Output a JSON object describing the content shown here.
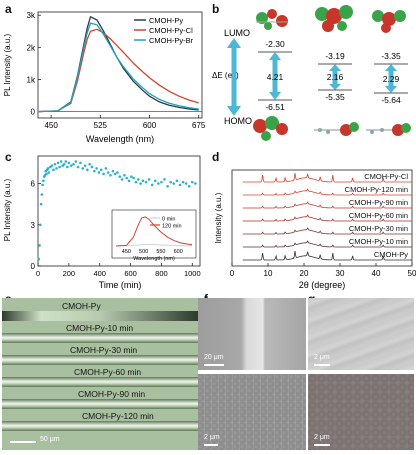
{
  "panels": {
    "a": "a",
    "b": "b",
    "c": "c",
    "d": "d",
    "e": "e",
    "f": "f",
    "g": "g"
  },
  "chart_data": [
    {
      "panel": "a",
      "type": "line",
      "ylabel": "PL Intensity (a.u.)",
      "xlabel": "Wavelength (nm)",
      "xlim": [
        430,
        680
      ],
      "ylim": [
        -200,
        3100
      ],
      "xticks": [
        450,
        525,
        600,
        675
      ],
      "yticks": [
        0,
        1000,
        2000,
        3000
      ],
      "ytick_labels": [
        "0",
        "1k",
        "2k",
        "3k"
      ],
      "legend_position": "top-right",
      "series": [
        {
          "name": "CMOH-Py",
          "color": "#2b3a4a",
          "x": [
            430,
            460,
            480,
            490,
            500,
            505,
            510,
            520,
            530,
            540,
            550,
            560,
            575,
            590,
            600,
            615,
            630,
            645,
            660,
            675
          ],
          "y": [
            0,
            20,
            300,
            1100,
            2100,
            2600,
            2950,
            2850,
            2500,
            2100,
            1700,
            1350,
            950,
            650,
            480,
            300,
            200,
            130,
            80,
            50
          ]
        },
        {
          "name": "CMOH-Py-Cl",
          "color": "#d9412b",
          "x": [
            430,
            460,
            480,
            490,
            500,
            505,
            510,
            520,
            530,
            540,
            550,
            560,
            575,
            590,
            600,
            615,
            630,
            645,
            660,
            675
          ],
          "y": [
            0,
            20,
            250,
            950,
            1850,
            2250,
            2500,
            2560,
            2450,
            2270,
            2060,
            1850,
            1520,
            1230,
            1050,
            820,
            630,
            480,
            360,
            270
          ]
        },
        {
          "name": "CMOH-Py-Br",
          "color": "#1fa3b8",
          "x": [
            430,
            460,
            480,
            490,
            500,
            505,
            510,
            520,
            530,
            540,
            550,
            560,
            575,
            590,
            600,
            615,
            630,
            645,
            660,
            675
          ],
          "y": [
            0,
            20,
            280,
            1050,
            2000,
            2450,
            2750,
            2700,
            2400,
            2050,
            1700,
            1400,
            1020,
            730,
            560,
            380,
            260,
            180,
            120,
            80
          ]
        }
      ]
    },
    {
      "panel": "c",
      "type": "scatter",
      "ylabel": "PL Intensity (a.u.)",
      "xlabel": "Time (min)",
      "xlim": [
        0,
        1050
      ],
      "ylim": [
        0,
        8
      ],
      "xticks": [
        0,
        200,
        400,
        600,
        800,
        1000
      ],
      "yticks": [
        0,
        3,
        6
      ],
      "color": "#25b3c8",
      "x": [
        5,
        10,
        15,
        20,
        25,
        30,
        35,
        40,
        45,
        50,
        55,
        60,
        65,
        70,
        80,
        90,
        100,
        110,
        120,
        130,
        140,
        150,
        160,
        170,
        180,
        190,
        200,
        215,
        230,
        245,
        260,
        275,
        290,
        305,
        320,
        335,
        350,
        365,
        380,
        395,
        410,
        425,
        440,
        455,
        470,
        485,
        500,
        515,
        530,
        545,
        560,
        575,
        590,
        605,
        620,
        635,
        650,
        665,
        680,
        700,
        720,
        740,
        760,
        780,
        800,
        820,
        840,
        860,
        880,
        900,
        920,
        940,
        960,
        980,
        1000,
        1020
      ],
      "y": [
        0.5,
        1.5,
        3.0,
        4.5,
        5.2,
        5.9,
        6.2,
        6.5,
        6.6,
        6.9,
        6.7,
        7.0,
        7.1,
        6.8,
        7.2,
        7.3,
        7.0,
        7.4,
        7.1,
        7.5,
        7.2,
        7.6,
        7.3,
        7.4,
        7.6,
        7.2,
        7.5,
        7.3,
        7.4,
        7.6,
        7.2,
        7.5,
        7.1,
        7.3,
        7.0,
        7.4,
        7.2,
        6.9,
        7.1,
        6.8,
        7.0,
        6.7,
        7.1,
        6.8,
        6.6,
        6.9,
        6.7,
        6.8,
        6.5,
        6.3,
        6.6,
        6.4,
        6.2,
        6.5,
        6.4,
        6.1,
        6.3,
        6.0,
        6.2,
        6.1,
        6.3,
        5.9,
        6.2,
        6.0,
        6.1,
        6.3,
        5.8,
        6.1,
        6.0,
        6.2,
        5.9,
        6.1,
        6.0,
        5.8,
        6.1,
        6.0
      ],
      "inset": {
        "xlabel": "Wavelength (nm)",
        "xticks": [
          450,
          500,
          550,
          600
        ],
        "xlim": [
          420,
          640
        ],
        "ylim": [
          0,
          1.1
        ],
        "series": [
          {
            "name": "0 min",
            "color": "#cfd3d8",
            "x": [
              420,
              460,
              480,
              495,
              505,
              520,
              540,
              560,
              590,
              620,
              640
            ],
            "y": [
              0.01,
              0.02,
              0.03,
              0.04,
              0.05,
              0.05,
              0.04,
              0.03,
              0.02,
              0.01,
              0.01
            ]
          },
          {
            "name": "120 min",
            "color": "#d9412b",
            "x": [
              420,
              450,
              470,
              485,
              495,
              505,
              515,
              530,
              550,
              570,
              590,
              610,
              640
            ],
            "y": [
              0.0,
              0.02,
              0.3,
              0.75,
              0.97,
              1.0,
              0.92,
              0.72,
              0.48,
              0.3,
              0.18,
              0.1,
              0.04
            ]
          }
        ]
      }
    },
    {
      "panel": "d",
      "type": "line",
      "ylabel": "Intensity (a.u.)",
      "xlabel": "2θ (degree)",
      "xlim": [
        0,
        50
      ],
      "xticks": [
        0,
        10,
        20,
        30,
        40,
        50
      ],
      "series": [
        {
          "name": "CMOH-Py-Cl",
          "color": "#d9412b",
          "kind": "simulated"
        },
        {
          "name": "CMOH-Py-120 min",
          "color": "#d9412b",
          "kind": "measured"
        },
        {
          "name": "CMOH-Py-90 min",
          "color": "#c73a28",
          "kind": "measured"
        },
        {
          "name": "CMOH-Py-60 min",
          "color": "#a8312a",
          "kind": "measured"
        },
        {
          "name": "CMOH-Py-30 min",
          "color": "#86302e",
          "kind": "measured"
        },
        {
          "name": "CMOH-Py-10 min",
          "color": "#5f2c2e",
          "kind": "measured"
        },
        {
          "name": "CMOH-Py",
          "color": "#2e2e2e",
          "kind": "simulated"
        }
      ]
    }
  ],
  "diagram_b": {
    "lumo": "LUMO",
    "homo": "HOMO",
    "delta_e": "ΔE (ev)",
    "columns": [
      {
        "lumo": "-2.30",
        "gap": "4.21",
        "homo": "-6.51"
      },
      {
        "lumo": "-3.19",
        "gap": "2.16",
        "homo": "-5.35"
      },
      {
        "lumo": "-3.35",
        "gap": "2.29",
        "homo": "-5.64"
      }
    ]
  },
  "image_e": {
    "labels": [
      "CMOH-Py",
      "CMOH-Py-10 min",
      "CMOH-Py-30 min",
      "CMOH-Py-60 min",
      "CMOH-Py-90 min",
      "CMOH-Py-120 min"
    ],
    "scale": "50 μm"
  },
  "image_f": {
    "top_scale": "20 μm",
    "bottom_scale": "2 μm"
  },
  "image_g": {
    "top_scale": "2 μm",
    "bottom_scale": "2 μm"
  }
}
